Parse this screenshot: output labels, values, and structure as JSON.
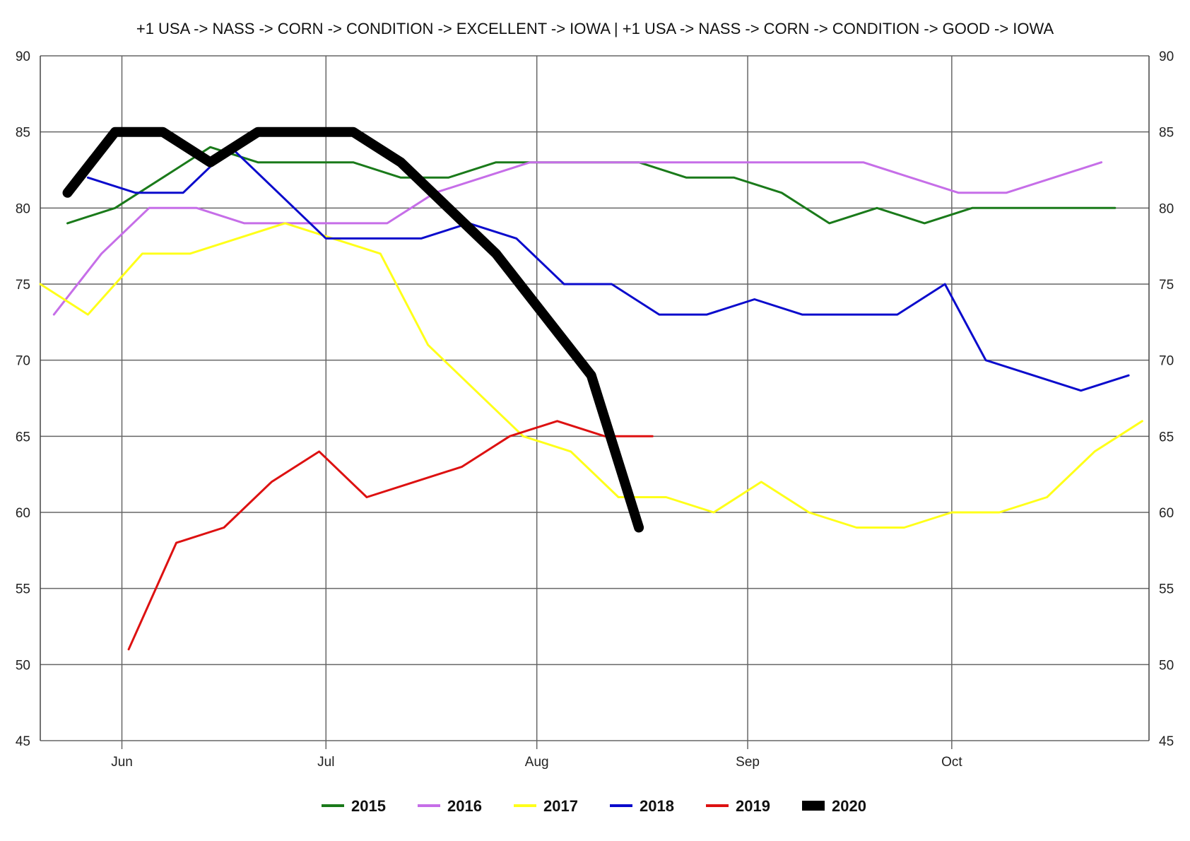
{
  "chart_data": {
    "type": "line",
    "title": "+1 USA -> NASS -> CORN -> CONDITION -> EXCELLENT -> IOWA | +1 USA -> NASS -> CORN -> CONDITION -> GOOD -> IOWA",
    "xlabel": "",
    "ylabel": "",
    "x_axis": {
      "type": "date",
      "range": [
        "2020-05-20",
        "2020-10-30"
      ],
      "ticks": [
        {
          "date": "2020-06-01",
          "label": "Jun"
        },
        {
          "date": "2020-07-01",
          "label": "Jul"
        },
        {
          "date": "2020-08-01",
          "label": "Aug"
        },
        {
          "date": "2020-09-01",
          "label": "Sep"
        },
        {
          "date": "2020-10-01",
          "label": "Oct"
        }
      ]
    },
    "y_axis": {
      "range": [
        45,
        90
      ],
      "ticks": [
        45,
        50,
        55,
        60,
        65,
        70,
        75,
        80,
        85,
        90
      ],
      "left_labels": true,
      "right_labels": true
    },
    "grid": true,
    "legend": {
      "position": "bottom"
    },
    "series": [
      {
        "name": "2015",
        "color": "#1a7a1a",
        "width": 3,
        "points": [
          [
            "2020-05-24",
            79
          ],
          [
            "2020-05-31",
            80
          ],
          [
            "2020-06-07",
            82
          ],
          [
            "2020-06-14",
            84
          ],
          [
            "2020-06-21",
            83
          ],
          [
            "2020-06-28",
            83
          ],
          [
            "2020-07-05",
            83
          ],
          [
            "2020-07-12",
            82
          ],
          [
            "2020-07-19",
            82
          ],
          [
            "2020-07-26",
            83
          ],
          [
            "2020-08-02",
            83
          ],
          [
            "2020-08-09",
            83
          ],
          [
            "2020-08-16",
            83
          ],
          [
            "2020-08-23",
            82
          ],
          [
            "2020-08-30",
            82
          ],
          [
            "2020-09-06",
            81
          ],
          [
            "2020-09-13",
            79
          ],
          [
            "2020-09-20",
            80
          ],
          [
            "2020-09-27",
            79
          ],
          [
            "2020-10-04",
            80
          ],
          [
            "2020-10-11",
            80
          ],
          [
            "2020-10-18",
            80
          ],
          [
            "2020-10-25",
            80
          ]
        ]
      },
      {
        "name": "2016",
        "color": "#c66ee8",
        "width": 3,
        "points": [
          [
            "2020-05-22",
            73
          ],
          [
            "2020-05-29",
            77
          ],
          [
            "2020-06-05",
            80
          ],
          [
            "2020-06-12",
            80
          ],
          [
            "2020-06-19",
            79
          ],
          [
            "2020-06-26",
            79
          ],
          [
            "2020-07-03",
            79
          ],
          [
            "2020-07-10",
            79
          ],
          [
            "2020-07-17",
            81
          ],
          [
            "2020-07-24",
            82
          ],
          [
            "2020-07-31",
            83
          ],
          [
            "2020-08-07",
            83
          ],
          [
            "2020-08-14",
            83
          ],
          [
            "2020-08-21",
            83
          ],
          [
            "2020-08-28",
            83
          ],
          [
            "2020-09-04",
            83
          ],
          [
            "2020-09-11",
            83
          ],
          [
            "2020-09-18",
            83
          ],
          [
            "2020-09-25",
            82
          ],
          [
            "2020-10-02",
            81
          ],
          [
            "2020-10-09",
            81
          ],
          [
            "2020-10-16",
            82
          ],
          [
            "2020-10-23",
            83
          ]
        ]
      },
      {
        "name": "2017",
        "color": "#ffff1a",
        "width": 3,
        "points": [
          [
            "2020-05-20",
            75
          ],
          [
            "2020-05-27",
            73
          ],
          [
            "2020-06-04",
            77
          ],
          [
            "2020-06-11",
            77
          ],
          [
            "2020-06-18",
            78
          ],
          [
            "2020-06-25",
            79
          ],
          [
            "2020-07-02",
            78
          ],
          [
            "2020-07-09",
            77
          ],
          [
            "2020-07-16",
            71
          ],
          [
            "2020-07-23",
            68
          ],
          [
            "2020-07-30",
            65
          ],
          [
            "2020-08-06",
            64
          ],
          [
            "2020-08-13",
            61
          ],
          [
            "2020-08-20",
            61
          ],
          [
            "2020-08-27",
            60
          ],
          [
            "2020-09-03",
            62
          ],
          [
            "2020-09-10",
            60
          ],
          [
            "2020-09-17",
            59
          ],
          [
            "2020-09-24",
            59
          ],
          [
            "2020-10-01",
            60
          ],
          [
            "2020-10-08",
            60
          ],
          [
            "2020-10-15",
            61
          ],
          [
            "2020-10-22",
            64
          ],
          [
            "2020-10-29",
            66
          ]
        ]
      },
      {
        "name": "2018",
        "color": "#0b0bcc",
        "width": 3,
        "points": [
          [
            "2020-05-27",
            82
          ],
          [
            "2020-06-03",
            81
          ],
          [
            "2020-06-10",
            81
          ],
          [
            "2020-06-17",
            84
          ],
          [
            "2020-06-24",
            81
          ],
          [
            "2020-07-01",
            78
          ],
          [
            "2020-07-08",
            78
          ],
          [
            "2020-07-15",
            78
          ],
          [
            "2020-07-22",
            79
          ],
          [
            "2020-07-29",
            78
          ],
          [
            "2020-08-05",
            75
          ],
          [
            "2020-08-12",
            75
          ],
          [
            "2020-08-19",
            73
          ],
          [
            "2020-08-26",
            73
          ],
          [
            "2020-09-02",
            74
          ],
          [
            "2020-09-09",
            73
          ],
          [
            "2020-09-16",
            73
          ],
          [
            "2020-09-23",
            73
          ],
          [
            "2020-09-30",
            75
          ],
          [
            "2020-10-06",
            70
          ],
          [
            "2020-10-13",
            69
          ],
          [
            "2020-10-20",
            68
          ],
          [
            "2020-10-27",
            69
          ]
        ]
      },
      {
        "name": "2019",
        "color": "#dd1111",
        "width": 3,
        "points": [
          [
            "2020-06-02",
            51
          ],
          [
            "2020-06-09",
            58
          ],
          [
            "2020-06-16",
            59
          ],
          [
            "2020-06-23",
            62
          ],
          [
            "2020-06-30",
            64
          ],
          [
            "2020-07-07",
            61
          ],
          [
            "2020-07-14",
            62
          ],
          [
            "2020-07-21",
            63
          ],
          [
            "2020-07-28",
            65
          ],
          [
            "2020-08-04",
            66
          ],
          [
            "2020-08-11",
            65
          ],
          [
            "2020-08-18",
            65
          ]
        ]
      },
      {
        "name": "2020",
        "color": "#000000",
        "width": 14,
        "points": [
          [
            "2020-05-24",
            81
          ],
          [
            "2020-05-31",
            85
          ],
          [
            "2020-06-07",
            85
          ],
          [
            "2020-06-14",
            83
          ],
          [
            "2020-06-21",
            85
          ],
          [
            "2020-06-28",
            85
          ],
          [
            "2020-07-05",
            85
          ],
          [
            "2020-07-12",
            83
          ],
          [
            "2020-07-19",
            80
          ],
          [
            "2020-07-26",
            77
          ],
          [
            "2020-08-02",
            73
          ],
          [
            "2020-08-09",
            69
          ],
          [
            "2020-08-16",
            59
          ]
        ]
      }
    ]
  }
}
